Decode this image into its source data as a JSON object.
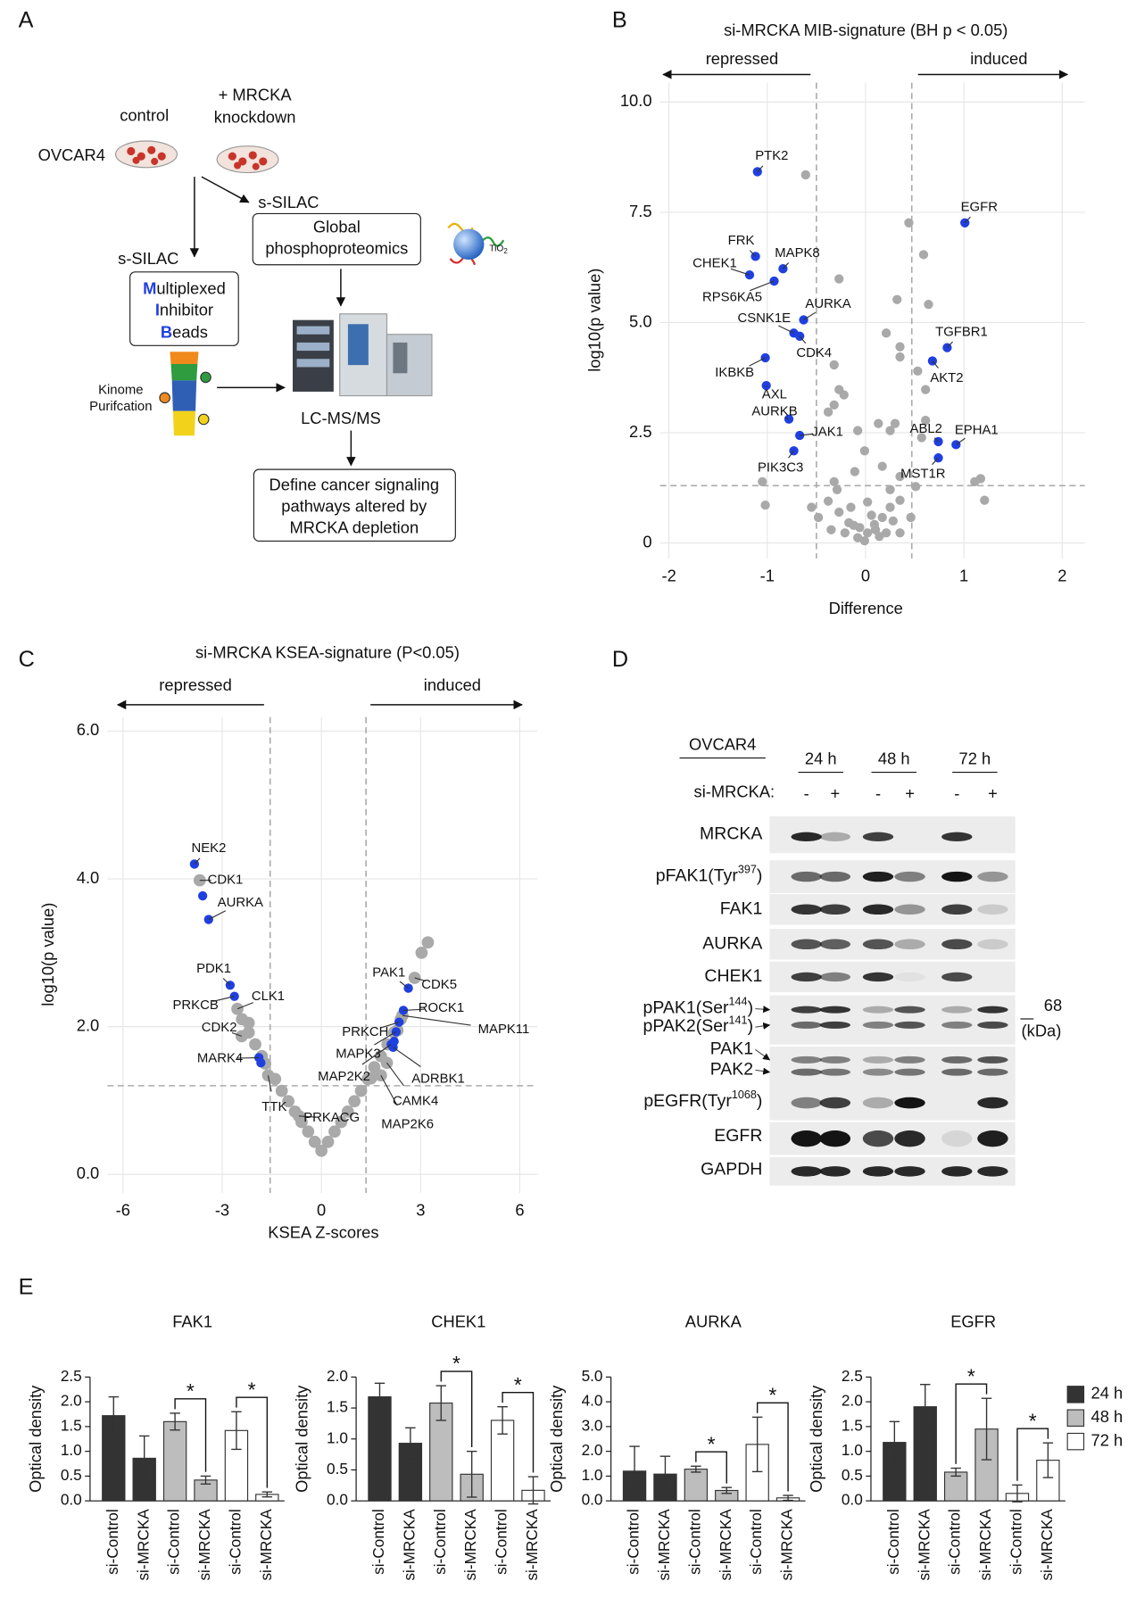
{
  "panel_labels": [
    "A",
    "B",
    "C",
    "D",
    "E"
  ],
  "diagram": {
    "control": "control",
    "knockdown": [
      "+ MRCKA",
      "knockdown"
    ],
    "cell_line": "OVCAR4",
    "silac_right": "s-SILAC",
    "phospho": [
      "Global",
      "phosphoproteomics"
    ],
    "tio2": {
      "text": "TiO",
      "sub": "2"
    },
    "silac_left": "s-SILAC",
    "mib": [
      {
        "initial": "M",
        "rest": "ultiplexed"
      },
      {
        "initial": "I",
        "rest": "nhibitor"
      },
      {
        "initial": "B",
        "rest": "eads"
      }
    ],
    "kinome": [
      "Kinome",
      "Purifcation"
    ],
    "lcms": "LC-MS/MS",
    "define": [
      "Define cancer signaling",
      "pathways altered by",
      "MRCKA depletion"
    ]
  },
  "blot": {
    "cell_line": "OVCAR4",
    "timepoints": [
      "24 h",
      "48 h",
      "72 h"
    ],
    "treatment_label": "si-MRCKA:",
    "lanes": [
      "-",
      "+",
      "-",
      "+",
      "-",
      "+"
    ],
    "row_labels": [
      {
        "text": "MRCKA"
      },
      {
        "text": "pFAK1(Tyr",
        "sup": "397",
        "tail": ")"
      },
      {
        "text": "FAK1"
      },
      {
        "text": "AURKA"
      },
      {
        "text": "CHEK1"
      },
      {
        "text": "pPAK1(Ser",
        "sup": "144",
        "tail": ")"
      },
      {
        "text": "pPAK2(Ser",
        "sup": "141",
        "tail": ")"
      },
      {
        "text": "PAK1"
      },
      {
        "text": "PAK2"
      },
      {
        "text": "pEGFR(Tyr",
        "sup": "1068",
        "tail": ")"
      },
      {
        "text": "EGFR"
      },
      {
        "text": "GAPDH"
      }
    ],
    "marker": "68",
    "marker_unit": "(kDa)"
  },
  "chart_data": [
    {
      "type": "scatter",
      "title": "si-MRCKA MIB-signature (BH p < 0.05)",
      "direction_labels": [
        "repressed",
        "induced"
      ],
      "x_label": "Difference",
      "y_label": "log10(p value)",
      "xlim": [
        -2.09,
        2.23
      ],
      "ylim": [
        -0.35,
        10.44
      ],
      "xticks": [
        -2,
        -1,
        0,
        1,
        2
      ],
      "yticks": [
        0,
        2.5,
        {
          "value": 5,
          "label": "5.0"
        },
        7.5,
        {
          "value": 10,
          "label": "10.0"
        }
      ],
      "grid": true,
      "threshold_x": [
        -0.5,
        0.47
      ],
      "threshold_y": 1.3,
      "series": [
        {
          "color": "#a9a9a9",
          "x": [
            -0.61,
            0.44,
            0.59,
            -0.27,
            0.32,
            0.64,
            0.21,
            0.35,
            0.35,
            -0.32,
            -0.27,
            -0.22,
            -0.32,
            -0.38,
            0.13,
            0.25,
            0.3,
            0.61,
            0.57,
            -0.08,
            -0.01,
            0.17,
            0.35,
            0.51,
            1.17,
            1.11,
            1.21,
            -1.05,
            -1.02,
            -0.55,
            -0.48,
            -0.38,
            -0.27,
            -0.17,
            -0.06,
            0.02,
            0.09,
            0.17,
            0.25,
            0.35,
            0.46,
            -0.08,
            -0.01,
            -0.15,
            -0.29,
            0.25,
            -0.11,
            0.02,
            0.06,
            -0.21,
            0.21,
            0.35,
            -0.32,
            0.61,
            0.53,
            0.1,
            -0.12,
            0.14,
            0.28,
            -0.35
          ],
          "values": [
            8.35,
            7.26,
            6.54,
            5.99,
            5.52,
            5.41,
            4.76,
            4.45,
            4.22,
            4.04,
            3.48,
            3.36,
            3.13,
            2.97,
            2.71,
            2.55,
            2.71,
            2.78,
            2.39,
            2.55,
            2.09,
            1.74,
            1.51,
            1.28,
            1.46,
            1.39,
            0.97,
            1.39,
            0.86,
            0.81,
            0.58,
            0.95,
            0.7,
            0.46,
            0.35,
            0.23,
            0.42,
            0.58,
            0.81,
            0.97,
            0.58,
            0.12,
            0.05,
            0.81,
            1.21,
            1.21,
            1.62,
            0.93,
            0.63,
            0.23,
            0.23,
            0.23,
            1.39,
            3.48,
            3.9,
            0.3,
            0.4,
            0.15,
            0.5,
            0.3
          ]
        },
        {
          "color": "#1f3fe0",
          "x": [
            -1.1,
            1.01,
            -1.12,
            -0.84,
            -1.18,
            -0.93,
            -0.63,
            -0.73,
            -0.67,
            0.83,
            0.68,
            -1.02,
            -1.01,
            -0.78,
            -0.67,
            0.74,
            0.92,
            -0.73,
            0.74
          ],
          "values": [
            8.42,
            7.26,
            6.5,
            6.22,
            6.08,
            5.94,
            5.06,
            4.76,
            4.69,
            4.43,
            4.13,
            4.2,
            3.57,
            2.81,
            2.44,
            2.3,
            2.23,
            2.09,
            1.93
          ],
          "labels": [
            "PTK2",
            "EGFR",
            "FRK",
            "MAPK8",
            "CHEK1",
            "RPS6KA5",
            "AURKA",
            "CSNK1E",
            "CDK4",
            "TGFBR1",
            "AKT2",
            "IKBKB",
            "AXL",
            "AURKB",
            "JAK1",
            "ABL2",
            "EPHA1",
            "PIK3C3",
            "MST1R"
          ]
        }
      ]
    },
    {
      "type": "scatter",
      "title": "si-MRCKA KSEA-signature (P<0.05)",
      "direction_labels": [
        "repressed",
        "induced"
      ],
      "x_label": "KSEA Z-scores",
      "y_label": "log10(p value)",
      "xlim": [
        -6.47,
        6.53
      ],
      "ylim": [
        -0.25,
        6.19
      ],
      "xticks": [
        -6,
        -3,
        0,
        3,
        6
      ],
      "yticks": [
        {
          "value": 0,
          "label": "0.0"
        },
        {
          "value": 2,
          "label": "2.0"
        },
        {
          "value": 4,
          "label": "4.0"
        },
        {
          "value": 6,
          "label": "6.0"
        }
      ],
      "grid": true,
      "threshold_x": [
        -1.55,
        1.35
      ],
      "threshold_y": 1.2,
      "series": [
        {
          "color": "#a9a9a9",
          "x": [
            -3.68,
            -2.54,
            -2.41,
            -1.61,
            -0.68,
            2.82,
            2.45,
            1.98,
            1.8,
            3.22,
            3.03,
            -2.2,
            -1.7,
            1.5,
            2.3,
            -2.4,
            -2.2,
            -2.0,
            -1.8,
            -1.4,
            -1.2,
            -1.0,
            -0.8,
            -0.6,
            -0.4,
            -0.2,
            0,
            0.2,
            0.4,
            0.6,
            0.8,
            1.0,
            1.2,
            1.4,
            1.6,
            1.8,
            2.0,
            2.2,
            2.4
          ],
          "values": [
            3.98,
            2.24,
            1.87,
            1.34,
            0.79,
            2.66,
            2.15,
            1.51,
            1.34,
            3.14,
            3.0,
            2.05,
            1.5,
            1.3,
            1.95,
            2.1,
            1.92,
            1.76,
            1.6,
            1.29,
            1.13,
            0.99,
            0.85,
            0.71,
            0.58,
            0.44,
            0.32,
            0.44,
            0.58,
            0.71,
            0.85,
            0.99,
            1.13,
            1.29,
            1.45,
            1.6,
            1.76,
            1.92,
            2.1
          ],
          "labels": [
            "CDK1",
            "CLK1",
            "CDK2",
            "TTK",
            "PRKACG",
            "CDK5",
            "MAPK11",
            "CAMK4",
            "MAP2K6",
            null,
            null,
            null,
            null,
            null,
            null,
            null,
            null,
            null,
            null,
            null,
            null,
            null,
            null,
            null,
            null,
            null,
            null,
            null,
            null,
            null,
            null,
            null,
            null,
            null,
            null,
            null,
            null,
            null,
            null
          ]
        },
        {
          "color": "#1f3fe0",
          "x": [
            -3.84,
            -3.59,
            -3.41,
            -2.76,
            -2.63,
            -1.89,
            -1.83,
            2.63,
            2.48,
            2.35,
            2.26,
            2.11,
            2.17,
            2.2
          ],
          "values": [
            4.2,
            3.77,
            3.45,
            2.56,
            2.41,
            1.58,
            1.51,
            2.52,
            2.22,
            2.06,
            1.93,
            1.76,
            1.72,
            1.8
          ],
          "labels": [
            "NEK2",
            null,
            "AURKA",
            "PDK1",
            "PRKCB",
            "MARK4",
            null,
            "PAK1",
            "ROCK1",
            "PRKCH",
            "MAPK3",
            "MAP2K2",
            "ADRBK1",
            null
          ]
        }
      ]
    },
    {
      "type": "bar",
      "title": "FAK1",
      "y_label": "Optical density",
      "categories": [
        "si-Control",
        "si-MRCKA",
        "si-Control",
        "si-MRCKA",
        "si-Control",
        "si-MRCKA"
      ],
      "values": [
        1.72,
        0.86,
        1.6,
        0.42,
        1.42,
        0.13
      ],
      "errors": [
        0.38,
        0.45,
        0.17,
        0.08,
        0.38,
        0.05
      ],
      "ylim": [
        0,
        2.5
      ],
      "yticks": [
        {
          "value": 0,
          "label": "0.0"
        },
        0.5,
        {
          "value": 1,
          "label": "1.0"
        },
        1.5,
        {
          "value": 2,
          "label": "2.0"
        },
        2.5
      ],
      "significance": [
        {
          "label": "*",
          "between": [
            2,
            3
          ]
        },
        {
          "label": "*",
          "between": [
            4,
            5
          ]
        }
      ]
    },
    {
      "type": "bar",
      "title": "CHEK1",
      "y_label": "Optical density",
      "categories": [
        "si-Control",
        "si-MRCKA",
        "si-Control",
        "si-MRCKA",
        "si-Control",
        "si-MRCKA"
      ],
      "values": [
        1.68,
        0.93,
        1.58,
        0.43,
        1.3,
        0.17
      ],
      "errors": [
        0.22,
        0.25,
        0.28,
        0.37,
        0.22,
        0.22
      ],
      "ylim": [
        0,
        2.0
      ],
      "yticks": [
        {
          "value": 0,
          "label": "0.0"
        },
        0.5,
        {
          "value": 1,
          "label": "1.0"
        },
        1.5,
        {
          "value": 2,
          "label": "2.0"
        }
      ],
      "significance": [
        {
          "label": "*",
          "between": [
            2,
            3
          ]
        },
        {
          "label": "*",
          "between": [
            4,
            5
          ]
        }
      ]
    },
    {
      "type": "bar",
      "title": "AURKA",
      "y_label": "Optical density",
      "categories": [
        "si-Control",
        "si-MRCKA",
        "si-Control",
        "si-MRCKA",
        "si-Control",
        "si-MRCKA"
      ],
      "values": [
        1.2,
        1.08,
        1.28,
        0.42,
        2.28,
        0.12
      ],
      "errors": [
        1.0,
        0.72,
        0.12,
        0.12,
        1.1,
        0.1
      ],
      "ylim": [
        0,
        5.0
      ],
      "yticks": [
        {
          "value": 0,
          "label": "0.0"
        },
        {
          "value": 1,
          "label": "1.0"
        },
        {
          "value": 2,
          "label": "2.0"
        },
        {
          "value": 3,
          "label": "3.0"
        },
        {
          "value": 4,
          "label": "4.0"
        },
        {
          "value": 5,
          "label": "5.0"
        }
      ],
      "significance": [
        {
          "label": "*",
          "between": [
            2,
            3
          ]
        },
        {
          "label": "*",
          "between": [
            4,
            5
          ]
        }
      ]
    },
    {
      "type": "bar",
      "title": "EGFR",
      "y_label": "Optical density",
      "categories": [
        "si-Control",
        "si-MRCKA",
        "si-Control",
        "si-MRCKA",
        "si-Control",
        "si-MRCKA"
      ],
      "values": [
        1.18,
        1.9,
        0.58,
        1.45,
        0.15,
        0.82
      ],
      "errors": [
        0.42,
        0.45,
        0.08,
        0.62,
        0.17,
        0.35
      ],
      "ylim": [
        0,
        2.5
      ],
      "yticks": [
        {
          "value": 0,
          "label": "0.0"
        },
        0.5,
        {
          "value": 1,
          "label": "1.0"
        },
        1.5,
        {
          "value": 2,
          "label": "2.0"
        },
        2.5
      ],
      "significance": [
        {
          "label": "*",
          "between": [
            2,
            3
          ]
        },
        {
          "label": "*",
          "between": [
            4,
            5
          ]
        }
      ],
      "legend": [
        {
          "name": "24 h",
          "color": "#333333"
        },
        {
          "name": "48 h",
          "color": "#bdbdbd"
        },
        {
          "name": "72 h",
          "color": "#ffffff"
        }
      ]
    }
  ]
}
